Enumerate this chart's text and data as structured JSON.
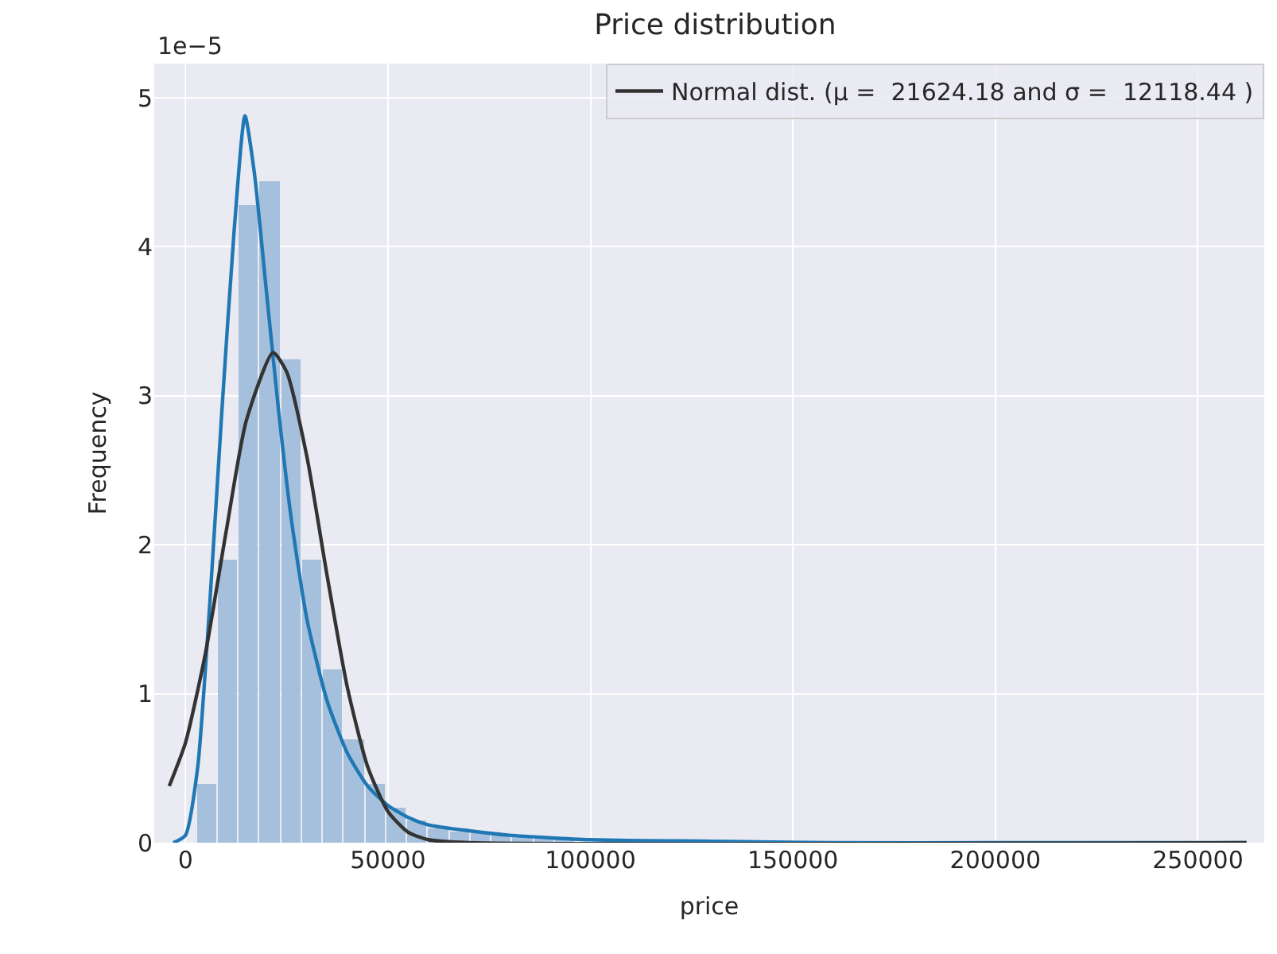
{
  "chart_data": {
    "type": "histogram",
    "title": "Price distribution",
    "xlabel": "price",
    "ylabel": "Frequency",
    "annotations": [
      "1e−5"
    ],
    "xlim": [
      -7700,
      266400
    ],
    "xticks": [
      0,
      50000,
      100000,
      150000,
      200000,
      250000
    ],
    "ylim": [
      0,
      5.23
    ],
    "yticks": [
      0,
      1,
      2,
      3,
      4,
      5
    ],
    "grid": true,
    "legend": "top right",
    "series": [
      {
        "color": "#a5c0dc",
        "bins": [
          2600,
          7800,
          13000,
          18200,
          23400,
          28600,
          33800,
          39000,
          44200,
          49400,
          54600,
          59800,
          65000,
          70200,
          75400,
          80600,
          85800,
          91000,
          96200,
          101400,
          106600,
          111800,
          117000,
          122200,
          127400,
          132600,
          137800,
          143000,
          148200,
          153400,
          158600,
          163800,
          169000,
          174200,
          179400,
          184600,
          189800,
          195000,
          200200,
          205400,
          210600,
          215800,
          221000,
          226200,
          231400,
          236600,
          241800,
          247000,
          252200,
          257400,
          262600
        ],
        "values": [
          0.39,
          1.9,
          4.28,
          4.44,
          3.24,
          1.9,
          1.16,
          0.69,
          0.39,
          0.23,
          0.15,
          0.1,
          0.08,
          0.06,
          0.05,
          0.04,
          0.03,
          0.02,
          null,
          null,
          0.01,
          0.01,
          0,
          0,
          0,
          0,
          0,
          0,
          0,
          0,
          0,
          0,
          0,
          0,
          0,
          0,
          0,
          0,
          0,
          0,
          0,
          0,
          0,
          0,
          0,
          0,
          0,
          0,
          0,
          0
        ]
      },
      {
        "type": "line",
        "color": "#1f77b4",
        "x": [
          -3000,
          0,
          3000,
          6000,
          9000,
          12000,
          14700,
          17000,
          20000,
          23000,
          26000,
          30000,
          35000,
          40000,
          45000,
          50000,
          55000,
          60000,
          70000,
          80000,
          100000,
          130000,
          160000,
          200000,
          262000
        ],
        "values": [
          0,
          0.05,
          0.5,
          1.6,
          2.9,
          4.1,
          4.88,
          4.5,
          3.7,
          2.9,
          2.2,
          1.5,
          0.95,
          0.6,
          0.38,
          0.25,
          0.17,
          0.12,
          0.08,
          0.05,
          0.02,
          0.01,
          0,
          0,
          0
        ]
      },
      {
        "type": "line",
        "name": "Normal dist. (μ =  21624.18 and σ =  12118.44 )",
        "color": "#333333",
        "x": [
          -4000,
          0,
          5000,
          10000,
          15000,
          21624,
          25000,
          30000,
          35000,
          40000,
          45000,
          50000,
          55000,
          60000,
          70000,
          262000
        ],
        "values": [
          0.38,
          0.67,
          1.28,
          2.08,
          2.83,
          3.29,
          3.16,
          2.59,
          1.79,
          1.04,
          0.51,
          0.21,
          0.07,
          0.02,
          0,
          0
        ]
      }
    ]
  }
}
